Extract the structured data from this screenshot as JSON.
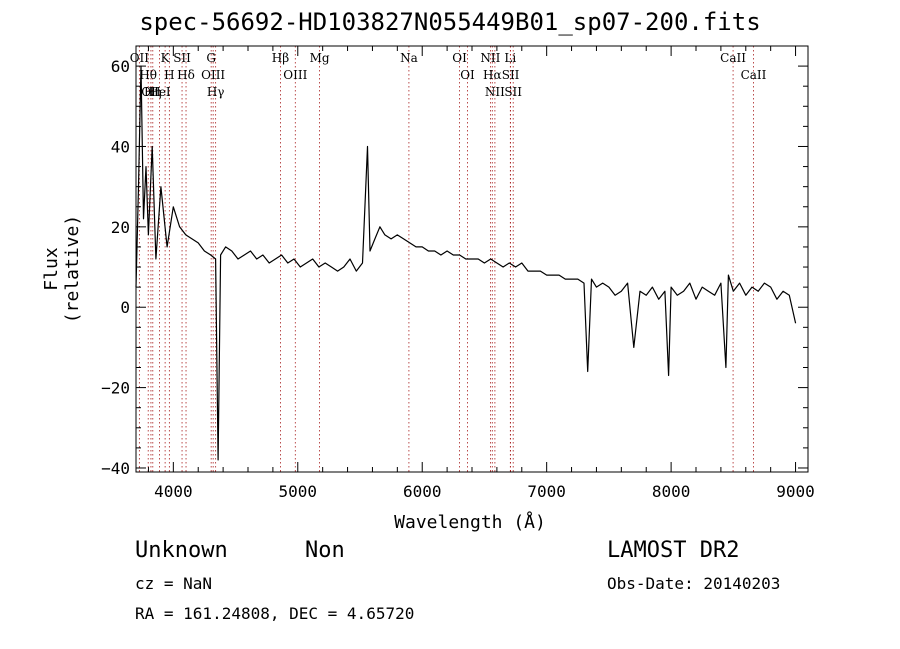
{
  "title": "spec-56692-HD103827N055449B01_sp07-200.fits",
  "info": {
    "class_text": "Unknown",
    "subclass_text": "Non",
    "survey": "LAMOST DR2",
    "cz": "cz = NaN",
    "obs_date": "Obs-Date: 20140203",
    "radec": "RA = 161.24808, DEC =   4.65720"
  },
  "chart_data": {
    "type": "line",
    "title": "spec-56692-HD103827N055449B01_sp07-200.fits",
    "xlabel": "Wavelength (Å)",
    "ylabel": "Flux (relative)",
    "xlim": [
      3700,
      9100
    ],
    "ylim": [
      -41,
      65
    ],
    "x_ticks": [
      4000,
      5000,
      6000,
      7000,
      8000,
      9000
    ],
    "y_ticks": [
      -40,
      -20,
      0,
      20,
      40,
      60
    ],
    "grid": false,
    "line_color": "#000000",
    "marker_line_color": "#aa2222",
    "series": [
      {
        "x": [
          3700,
          3720,
          3740,
          3760,
          3780,
          3800,
          3830,
          3860,
          3900,
          3950,
          4000,
          4050,
          4100,
          4150,
          4200,
          4250,
          4300,
          4340,
          4360,
          4380,
          4420,
          4470,
          4520,
          4570,
          4620,
          4670,
          4720,
          4770,
          4820,
          4870,
          4920,
          4970,
          5020,
          5070,
          5120,
          5170,
          5220,
          5270,
          5320,
          5370,
          5420,
          5470,
          5520,
          5560,
          5580,
          5620,
          5660,
          5700,
          5750,
          5800,
          5850,
          5900,
          5950,
          6000,
          6050,
          6100,
          6150,
          6200,
          6250,
          6300,
          6350,
          6400,
          6450,
          6500,
          6550,
          6600,
          6650,
          6700,
          6750,
          6800,
          6850,
          6900,
          6950,
          7000,
          7050,
          7100,
          7150,
          7200,
          7250,
          7300,
          7330,
          7360,
          7400,
          7450,
          7500,
          7550,
          7600,
          7650,
          7700,
          7750,
          7800,
          7850,
          7900,
          7950,
          7980,
          8000,
          8050,
          8100,
          8150,
          8200,
          8250,
          8300,
          8350,
          8400,
          8440,
          8460,
          8500,
          8550,
          8600,
          8650,
          8700,
          8750,
          8800,
          8850,
          8900,
          8950,
          9000
        ],
        "y": [
          5,
          30,
          60,
          22,
          35,
          18,
          40,
          12,
          30,
          15,
          25,
          20,
          18,
          17,
          16,
          14,
          13,
          12,
          -38,
          13,
          15,
          14,
          12,
          13,
          14,
          12,
          13,
          11,
          12,
          13,
          11,
          12,
          10,
          11,
          12,
          10,
          11,
          10,
          9,
          10,
          12,
          9,
          11,
          40,
          14,
          17,
          20,
          18,
          17,
          18,
          17,
          16,
          15,
          15,
          14,
          14,
          13,
          14,
          13,
          13,
          12,
          12,
          12,
          11,
          12,
          11,
          10,
          11,
          10,
          11,
          9,
          9,
          9,
          8,
          8,
          8,
          7,
          7,
          7,
          6,
          -16,
          7,
          5,
          6,
          5,
          3,
          4,
          6,
          -10,
          4,
          3,
          5,
          2,
          4,
          -17,
          5,
          3,
          4,
          6,
          2,
          5,
          4,
          3,
          6,
          -15,
          8,
          4,
          6,
          3,
          5,
          4,
          6,
          5,
          2,
          4,
          3,
          -4
        ]
      }
    ],
    "annotations": [
      {
        "label": "OII",
        "x": 3727
      },
      {
        "label": "Hθ",
        "x": 3798
      },
      {
        "label": "OII",
        "x": 3820
      },
      {
        "label": "Hη",
        "x": 3835
      },
      {
        "label": "HeI",
        "x": 3889
      },
      {
        "label": "K",
        "x": 3934
      },
      {
        "label": "H",
        "x": 3968
      },
      {
        "label": "SII",
        "x": 4070
      },
      {
        "label": "Hδ",
        "x": 4102
      },
      {
        "label": "G",
        "x": 4304
      },
      {
        "label": "OIII",
        "x": 4320
      },
      {
        "label": "Hγ",
        "x": 4340
      },
      {
        "label": "Hβ",
        "x": 4861
      },
      {
        "label": "OIII",
        "x": 4980
      },
      {
        "label": "Mg",
        "x": 5175
      },
      {
        "label": "Na",
        "x": 5893
      },
      {
        "label": "OI",
        "x": 6300
      },
      {
        "label": "OI",
        "x": 6364
      },
      {
        "label": "NII",
        "x": 6548
      },
      {
        "label": "Hα",
        "x": 6563
      },
      {
        "label": "NII",
        "x": 6584
      },
      {
        "label": "SII",
        "x": 6710
      },
      {
        "label": "Li",
        "x": 6708
      },
      {
        "label": "SII",
        "x": 6731
      },
      {
        "label": "CaII",
        "x": 8498
      },
      {
        "label": "CaII",
        "x": 8662
      }
    ]
  }
}
